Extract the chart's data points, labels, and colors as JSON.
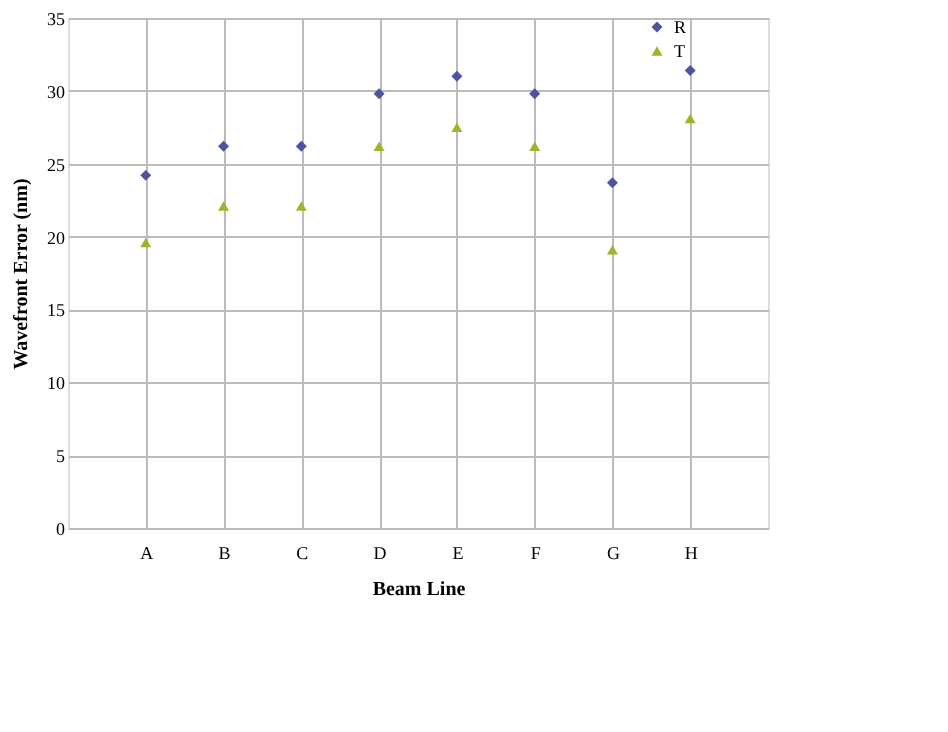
{
  "chart_data": {
    "type": "scatter",
    "xlabel": "Beam Line",
    "ylabel": "Wavefront Error (nm)",
    "categories": [
      "A",
      "B",
      "C",
      "D",
      "E",
      "F",
      "G",
      "H"
    ],
    "series": [
      {
        "name": "R",
        "color": "#4f52a0",
        "marker": "diamond",
        "values": [
          24.2,
          26.2,
          26.2,
          29.8,
          31.0,
          29.8,
          23.7,
          31.4
        ]
      },
      {
        "name": "T",
        "color": "#9cb52a",
        "marker": "triangle",
        "values": [
          19.6,
          22.1,
          22.1,
          26.2,
          27.5,
          26.2,
          19.1,
          28.1
        ]
      }
    ],
    "ylim": [
      0,
      35
    ],
    "yticks": [
      0,
      5,
      10,
      15,
      20,
      25,
      30,
      35
    ],
    "grid": true,
    "legend": "right"
  }
}
